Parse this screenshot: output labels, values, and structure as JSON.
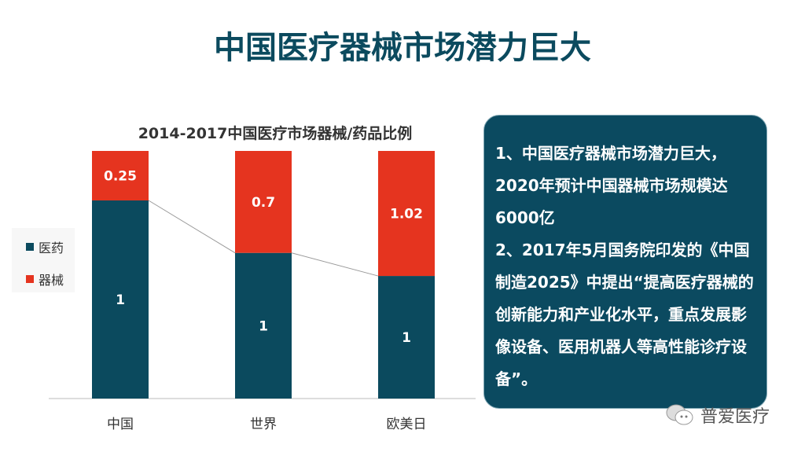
{
  "page_title": "中国医疗器械市场潜力巨大",
  "chart_data": {
    "type": "bar",
    "stacked": "percent",
    "title": "2014-2017中国医疗市场器械/药品比例",
    "categories": [
      "中国",
      "世界",
      "欧美日"
    ],
    "series": [
      {
        "name": "医药",
        "values": [
          1,
          1,
          1
        ],
        "color": "#0b4a5e"
      },
      {
        "name": "器械",
        "values": [
          0.25,
          0.7,
          1.02
        ],
        "color": "#e5341f"
      }
    ],
    "legend": "left",
    "grid": false,
    "series_lines": true
  },
  "panel": {
    "paragraphs": [
      "1、中国医疗器械市场潜力巨大，2020年预计中国器械市场规模达6000亿",
      "2、2017年5月国务院印发的《中国制造2025》中提出“提高医疗器械的创新能力和产业化水平，重点发展影像设备、医用机器人等高性能诊疗设备”。"
    ]
  },
  "watermark": {
    "text": "普爱医疗",
    "icon": "wechat-icon"
  }
}
